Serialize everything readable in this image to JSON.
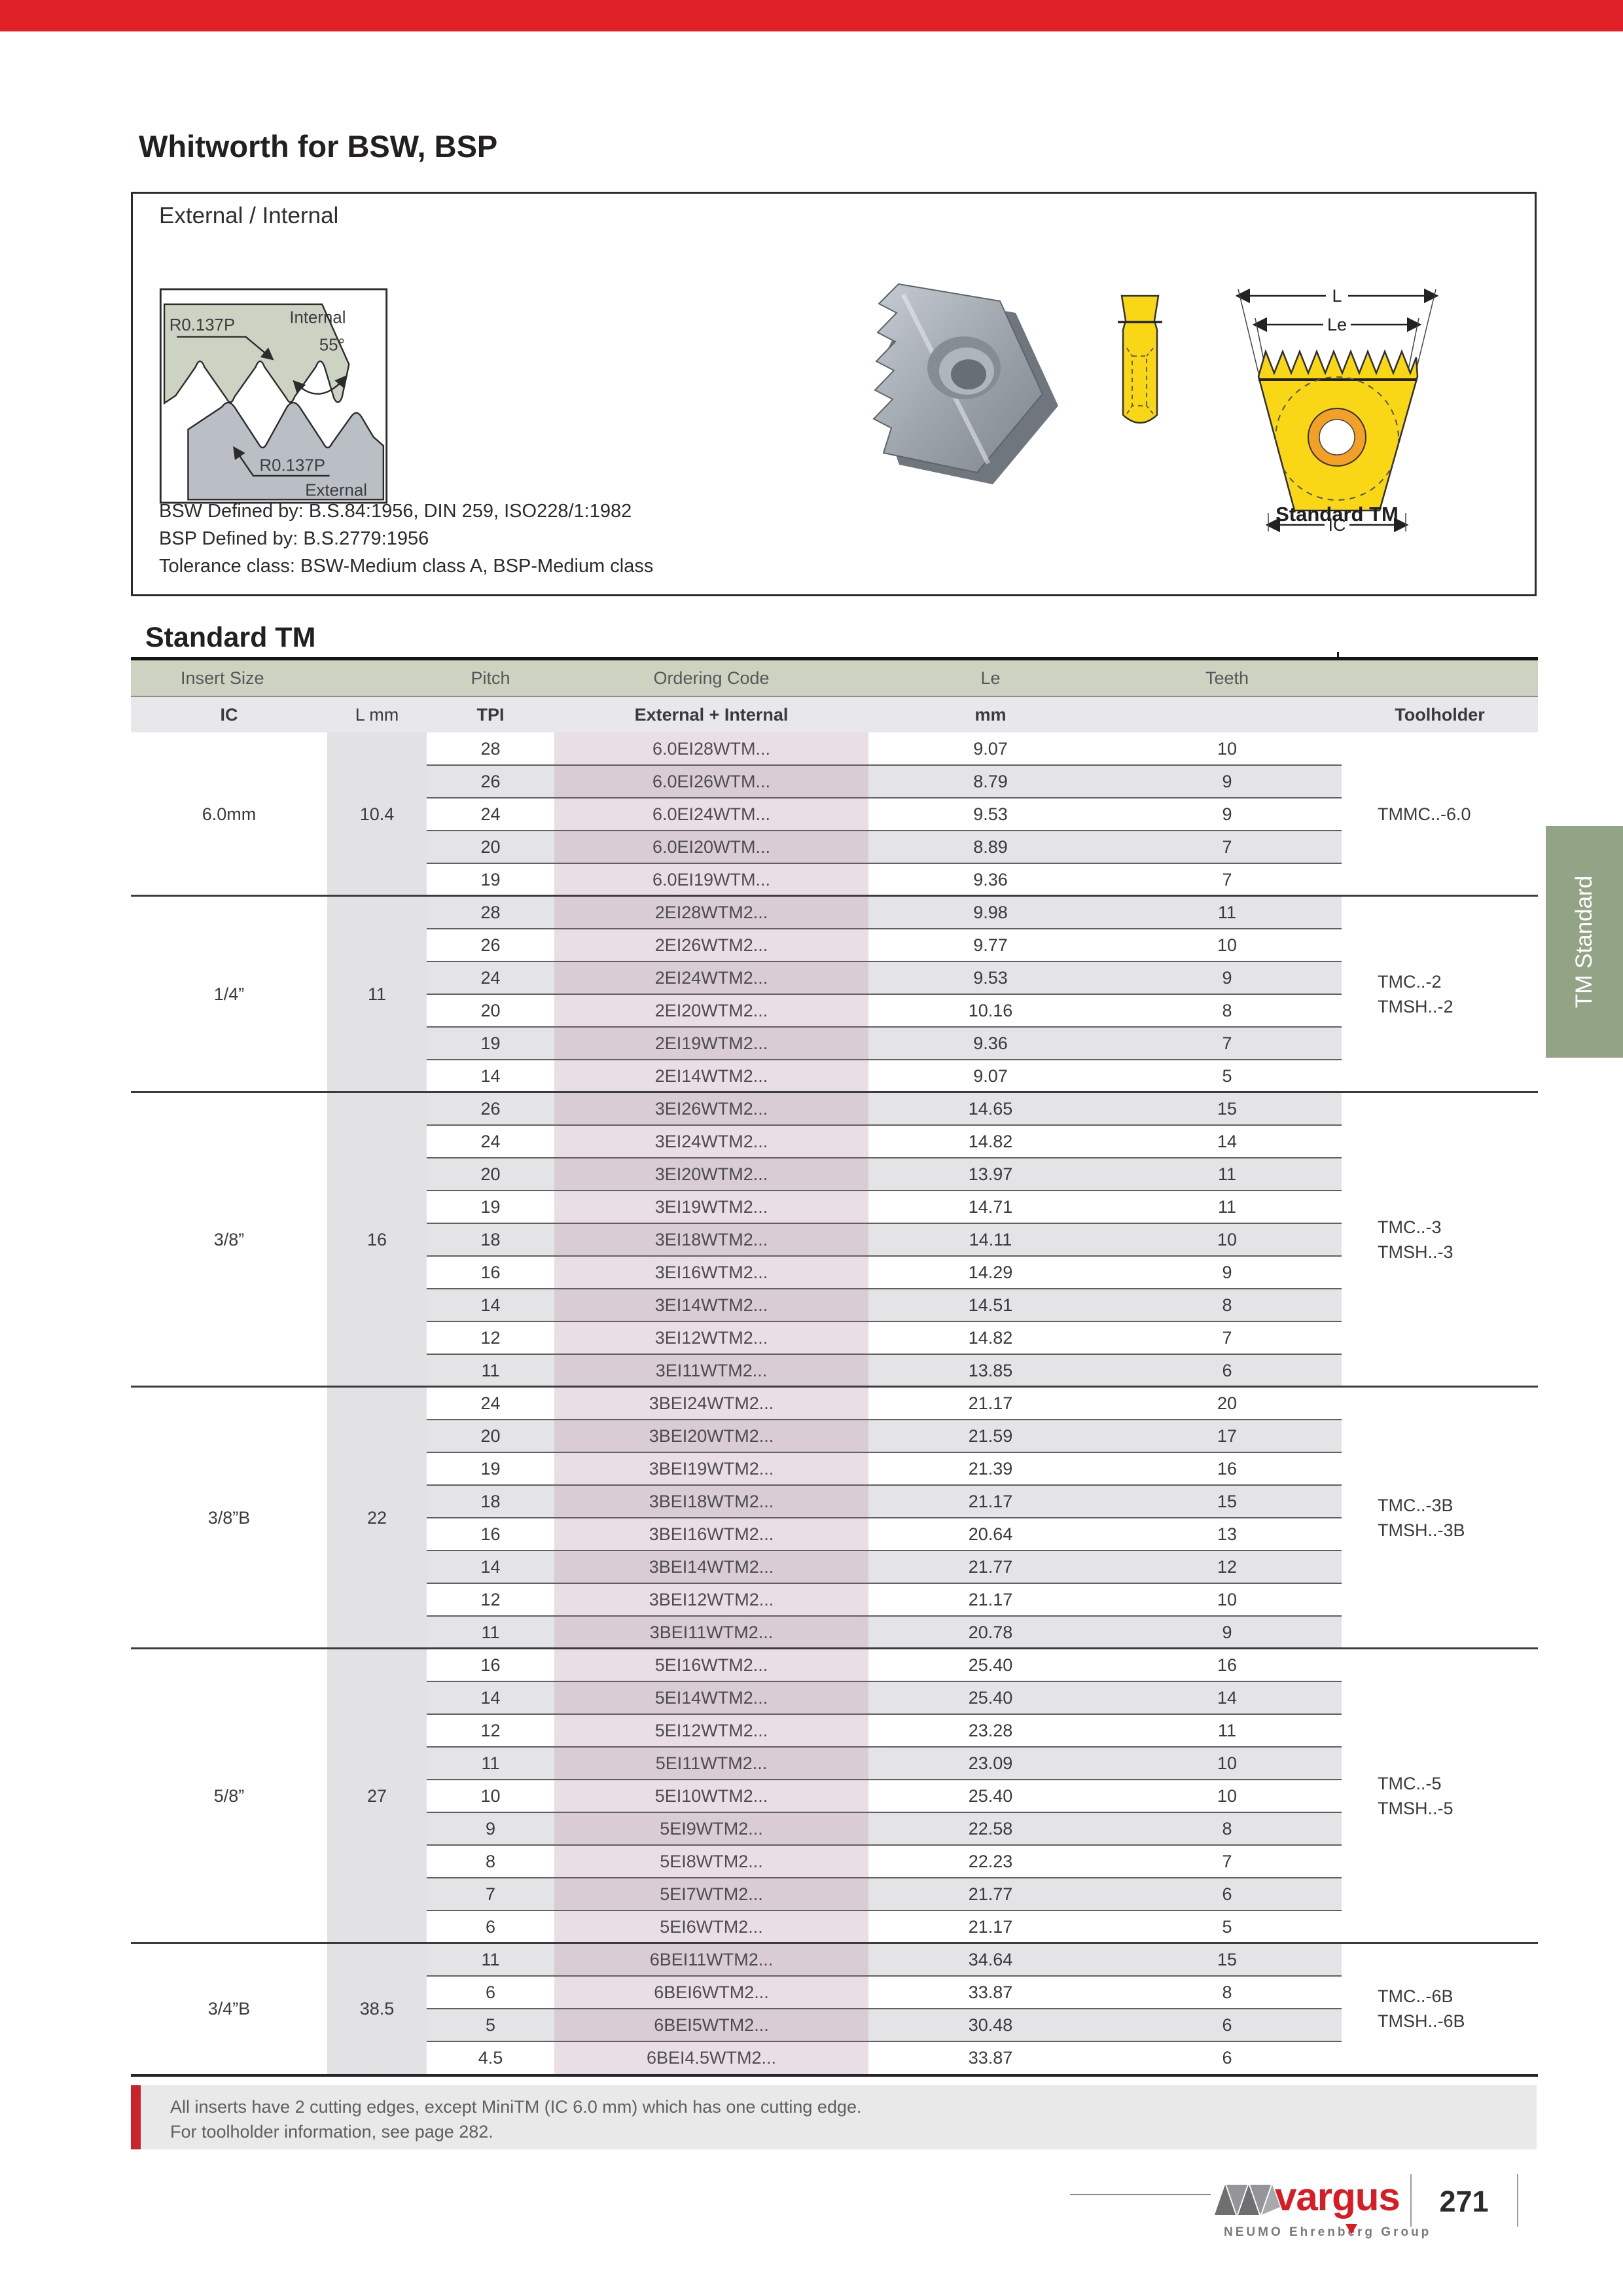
{
  "page": {
    "title": "Whitworth for BSW, BSP",
    "section_heading": "Standard TM",
    "page_number": "271"
  },
  "info_box": {
    "title": "External / Internal",
    "diagram": {
      "internal_label": "Internal",
      "external_label": "External",
      "angle_label": "55°",
      "radius_top_label": "R0.137P",
      "radius_bottom_label": "R0.137P"
    },
    "definitions": [
      "BSW Defined by: B.S.84:1956, DIN 259, ISO228/1:1982",
      "BSP Defined by: B.S.2779:1956",
      "Tolerance class: BSW-Medium class A, BSP-Medium class"
    ],
    "insert_label": "Standard TM",
    "dim_labels": {
      "l": "L",
      "le": "Le",
      "ic": "IC"
    }
  },
  "side_tab": {
    "label": "TM Standard"
  },
  "table": {
    "header_row1": {
      "insert_size": "Insert Size",
      "pitch": "Pitch",
      "ordering_code": "Ordering Code",
      "le": "Le",
      "teeth": "Teeth"
    },
    "header_row2": {
      "ic": "IC",
      "l_mm": "L mm",
      "tpi": "TPI",
      "external_internal": "External + Internal",
      "mm": "mm",
      "toolholder": "Toolholder"
    },
    "groups": [
      {
        "ic": "6.0mm",
        "l": "10.4",
        "toolholders": [
          "TMMC..-6.0"
        ],
        "rows": [
          [
            "28",
            "6.0EI28WTM...",
            "9.07",
            "10"
          ],
          [
            "26",
            "6.0EI26WTM...",
            "8.79",
            "9"
          ],
          [
            "24",
            "6.0EI24WTM...",
            "9.53",
            "9"
          ],
          [
            "20",
            "6.0EI20WTM...",
            "8.89",
            "7"
          ],
          [
            "19",
            "6.0EI19WTM...",
            "9.36",
            "7"
          ]
        ]
      },
      {
        "ic": "1/4”",
        "l": "11",
        "toolholders": [
          "TMC..-2",
          "TMSH..-2"
        ],
        "rows": [
          [
            "28",
            "2EI28WTM2...",
            "9.98",
            "11"
          ],
          [
            "26",
            "2EI26WTM2...",
            "9.77",
            "10"
          ],
          [
            "24",
            "2EI24WTM2...",
            "9.53",
            "9"
          ],
          [
            "20",
            "2EI20WTM2...",
            "10.16",
            "8"
          ],
          [
            "19",
            "2EI19WTM2...",
            "9.36",
            "7"
          ],
          [
            "14",
            "2EI14WTM2...",
            "9.07",
            "5"
          ]
        ]
      },
      {
        "ic": "3/8”",
        "l": "16",
        "toolholders": [
          "TMC..-3",
          "TMSH..-3"
        ],
        "rows": [
          [
            "26",
            "3EI26WTM2...",
            "14.65",
            "15"
          ],
          [
            "24",
            "3EI24WTM2...",
            "14.82",
            "14"
          ],
          [
            "20",
            "3EI20WTM2...",
            "13.97",
            "11"
          ],
          [
            "19",
            "3EI19WTM2...",
            "14.71",
            "11"
          ],
          [
            "18",
            "3EI18WTM2...",
            "14.11",
            "10"
          ],
          [
            "16",
            "3EI16WTM2...",
            "14.29",
            "9"
          ],
          [
            "14",
            "3EI14WTM2...",
            "14.51",
            "8"
          ],
          [
            "12",
            "3EI12WTM2...",
            "14.82",
            "7"
          ],
          [
            "11",
            "3EI11WTM2...",
            "13.85",
            "6"
          ]
        ]
      },
      {
        "ic": "3/8”B",
        "l": "22",
        "toolholders": [
          "TMC..-3B",
          "TMSH..-3B"
        ],
        "rows": [
          [
            "24",
            "3BEI24WTM2...",
            "21.17",
            "20"
          ],
          [
            "20",
            "3BEI20WTM2...",
            "21.59",
            "17"
          ],
          [
            "19",
            "3BEI19WTM2...",
            "21.39",
            "16"
          ],
          [
            "18",
            "3BEI18WTM2...",
            "21.17",
            "15"
          ],
          [
            "16",
            "3BEI16WTM2...",
            "20.64",
            "13"
          ],
          [
            "14",
            "3BEI14WTM2...",
            "21.77",
            "12"
          ],
          [
            "12",
            "3BEI12WTM2...",
            "21.17",
            "10"
          ],
          [
            "11",
            "3BEI11WTM2...",
            "20.78",
            "9"
          ]
        ]
      },
      {
        "ic": "5/8”",
        "l": "27",
        "toolholders": [
          "TMC..-5",
          "TMSH..-5"
        ],
        "rows": [
          [
            "16",
            "5EI16WTM2...",
            "25.40",
            "16"
          ],
          [
            "14",
            "5EI14WTM2...",
            "25.40",
            "14"
          ],
          [
            "12",
            "5EI12WTM2...",
            "23.28",
            "11"
          ],
          [
            "11",
            "5EI11WTM2...",
            "23.09",
            "10"
          ],
          [
            "10",
            "5EI10WTM2...",
            "25.40",
            "10"
          ],
          [
            "9",
            "5EI9WTM2...",
            "22.58",
            "8"
          ],
          [
            "8",
            "5EI8WTM2...",
            "22.23",
            "7"
          ],
          [
            "7",
            "5EI7WTM2...",
            "21.77",
            "6"
          ],
          [
            "6",
            "5EI6WTM2...",
            "21.17",
            "5"
          ]
        ]
      },
      {
        "ic": "3/4”B",
        "l": "38.5",
        "toolholders": [
          "TMC..-6B",
          "TMSH..-6B"
        ],
        "rows": [
          [
            "11",
            "6BEI11WTM2...",
            "34.64",
            "15"
          ],
          [
            "6",
            "6BEI6WTM2...",
            "33.87",
            "8"
          ],
          [
            "5",
            "6BEI5WTM2...",
            "30.48",
            "6"
          ],
          [
            "4.5",
            "6BEI4.5WTM2...",
            "33.87",
            "6"
          ]
        ]
      }
    ]
  },
  "footnote": {
    "lines": [
      "All inserts have 2 cutting edges, except MiniTM (IC 6.0 mm) which has one cutting edge.",
      "For toolholder information, see page 282."
    ]
  },
  "footer": {
    "brand": "vargus",
    "brand_sub": "NEUMO Ehrenberg Group",
    "page_number": "271"
  },
  "colors": {
    "accent_red": "#df2026",
    "header_green": "#cdd3c0",
    "tab_green": "#93a486",
    "row_shade": "#e4e4e6",
    "ordering_stripe_light": "#e9dee3",
    "ordering_stripe_dark": "#d9ccd3",
    "l_column_stripe": "#e2e2e4",
    "brand_red": "#d81c24"
  }
}
